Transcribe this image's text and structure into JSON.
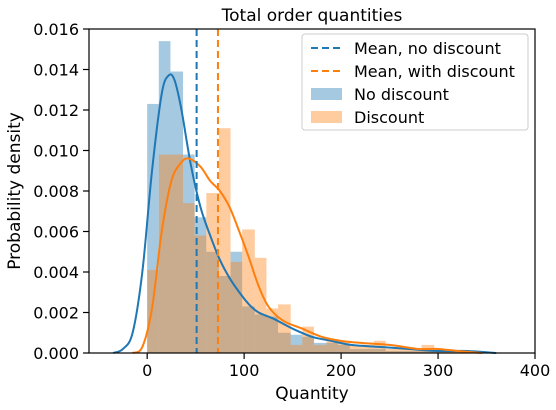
{
  "chart_data": {
    "type": "histogram",
    "title": "Total order quantities",
    "xlabel": "Quantity",
    "ylabel": "Probability density",
    "xlim": [
      -60,
      400
    ],
    "ylim": [
      0,
      0.016
    ],
    "xticks": [
      0,
      100,
      200,
      300,
      400
    ],
    "yticks": [
      0,
      0.002,
      0.004,
      0.006,
      0.008,
      0.01,
      0.012,
      0.014,
      0.016
    ],
    "xtick_labels": [
      "0",
      "100",
      "200",
      "300",
      "400"
    ],
    "ytick_labels": [
      "0.000",
      "0.002",
      "0.004",
      "0.006",
      "0.008",
      "0.010",
      "0.012",
      "0.014",
      "0.016"
    ],
    "grid": false,
    "legend_position": "top-right",
    "legend": [
      {
        "label": "Mean, no discount",
        "kind": "dashed",
        "color": "#1f77b4"
      },
      {
        "label": "Mean, with discount",
        "kind": "dashed",
        "color": "#ff7f0e"
      },
      {
        "label": "No discount",
        "kind": "patch",
        "color": "#1f77b4"
      },
      {
        "label": "Discount",
        "kind": "patch",
        "color": "#ff7f0e"
      }
    ],
    "series": [
      {
        "name": "No discount",
        "color": "#1f77b4",
        "mean": 51,
        "bins": [
          [
            0,
            12,
            0.0123
          ],
          [
            12,
            24,
            0.0154
          ],
          [
            24,
            37,
            0.0139
          ],
          [
            37,
            49,
            0.0098
          ],
          [
            49,
            61,
            0.0067
          ],
          [
            61,
            74,
            0.005
          ],
          [
            74,
            86,
            0.0038
          ],
          [
            86,
            98,
            0.005
          ],
          [
            98,
            111,
            0.0023
          ],
          [
            111,
            123,
            0.0019
          ],
          [
            123,
            135,
            0.0018
          ],
          [
            135,
            148,
            0.001
          ],
          [
            148,
            160,
            0.0009
          ],
          [
            160,
            172,
            0.0008
          ],
          [
            172,
            185,
            0.0005
          ],
          [
            185,
            197,
            0.0005
          ],
          [
            197,
            209,
            0.0004
          ],
          [
            209,
            222,
            0.0002
          ],
          [
            222,
            234,
            0.0002
          ],
          [
            234,
            246,
            0.0002
          ],
          [
            246,
            259,
            0.0001
          ],
          [
            259,
            271,
            0.0001
          ],
          [
            271,
            283,
            0.0001
          ],
          [
            283,
            296,
            0.0001
          ],
          [
            296,
            308,
            0.0001
          ],
          [
            308,
            320,
            0.0001
          ],
          [
            320,
            333,
            0.0001
          ],
          [
            333,
            345,
            0.0001
          ]
        ],
        "kde": [
          [
            -35,
            0
          ],
          [
            -25,
            0.0002
          ],
          [
            -15,
            0.001
          ],
          [
            -5,
            0.004
          ],
          [
            5,
            0.009
          ],
          [
            15,
            0.0128
          ],
          [
            22,
            0.0137
          ],
          [
            28,
            0.0135
          ],
          [
            35,
            0.0121
          ],
          [
            45,
            0.0093
          ],
          [
            55,
            0.0072
          ],
          [
            65,
            0.0058
          ],
          [
            75,
            0.0046
          ],
          [
            85,
            0.0037
          ],
          [
            95,
            0.003
          ],
          [
            105,
            0.0024
          ],
          [
            115,
            0.002
          ],
          [
            130,
            0.0017
          ],
          [
            150,
            0.0012
          ],
          [
            170,
            0.0008
          ],
          [
            190,
            0.0006
          ],
          [
            210,
            0.0004
          ],
          [
            240,
            0.0003
          ],
          [
            270,
            0.0002
          ],
          [
            300,
            0.0001
          ],
          [
            330,
            0.0001
          ],
          [
            360,
            0
          ]
        ]
      },
      {
        "name": "Discount",
        "color": "#ff7f0e",
        "mean": 73,
        "bins": [
          [
            0,
            12,
            0.0041
          ],
          [
            12,
            24,
            0.0098
          ],
          [
            24,
            37,
            0.0098
          ],
          [
            37,
            49,
            0.0074
          ],
          [
            49,
            61,
            0.0058
          ],
          [
            61,
            74,
            0.0079
          ],
          [
            74,
            86,
            0.0111
          ],
          [
            86,
            98,
            0.0045
          ],
          [
            98,
            111,
            0.0061
          ],
          [
            111,
            123,
            0.0047
          ],
          [
            123,
            135,
            0.0022
          ],
          [
            135,
            148,
            0.0024
          ],
          [
            148,
            160,
            0.0004
          ],
          [
            160,
            172,
            0.0013
          ],
          [
            172,
            185,
            0.0004
          ],
          [
            185,
            197,
            0.0006
          ],
          [
            197,
            209,
            0.0006
          ],
          [
            209,
            222,
            0.0004
          ],
          [
            222,
            234,
            0.0004
          ],
          [
            234,
            246,
            0.0006
          ],
          [
            246,
            259,
            0.0002
          ],
          [
            259,
            271,
            0.0002
          ],
          [
            271,
            283,
            0.0002
          ],
          [
            283,
            296,
            0.0004
          ],
          [
            296,
            308,
            0.0002
          ],
          [
            308,
            320,
            0.0001
          ],
          [
            320,
            333,
            0.0001
          ],
          [
            333,
            345,
            0.0001
          ]
        ],
        "kde": [
          [
            -15,
            0
          ],
          [
            -5,
            0.0003
          ],
          [
            5,
            0.0022
          ],
          [
            15,
            0.006
          ],
          [
            25,
            0.0085
          ],
          [
            35,
            0.0094
          ],
          [
            43,
            0.0096
          ],
          [
            55,
            0.0092
          ],
          [
            65,
            0.0085
          ],
          [
            75,
            0.008
          ],
          [
            85,
            0.0072
          ],
          [
            95,
            0.006
          ],
          [
            105,
            0.0047
          ],
          [
            115,
            0.0033
          ],
          [
            125,
            0.0023
          ],
          [
            140,
            0.0016
          ],
          [
            160,
            0.0012
          ],
          [
            180,
            0.0008
          ],
          [
            200,
            0.0006
          ],
          [
            220,
            0.0005
          ],
          [
            250,
            0.0004
          ],
          [
            280,
            0.0002
          ],
          [
            300,
            0.0002
          ],
          [
            320,
            0.0001
          ],
          [
            345,
            0
          ]
        ]
      }
    ]
  }
}
